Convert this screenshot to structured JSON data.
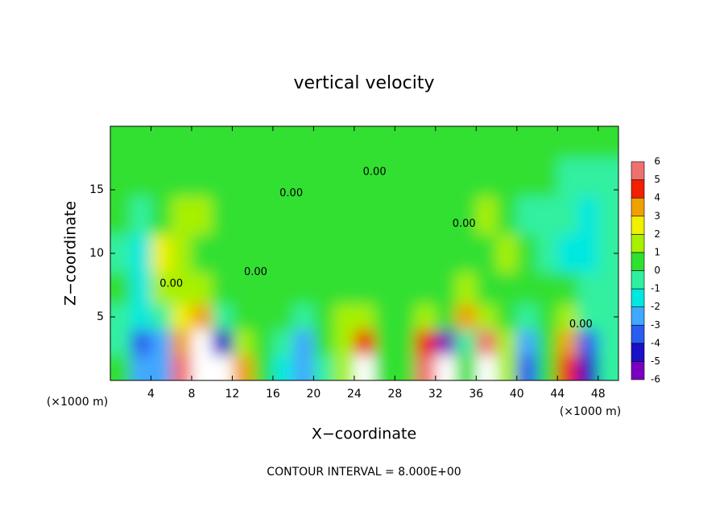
{
  "chart_data": {
    "type": "heatmap",
    "title": "vertical velocity",
    "x_label": "X−coordinate",
    "y_label": "Z−coordinate",
    "x_unit": "(×1000 m)",
    "footer": "CONTOUR INTERVAL = 8.000E+00",
    "xlim": [
      0,
      50
    ],
    "ylim": [
      0,
      20
    ],
    "xticks": [
      4,
      8,
      12,
      16,
      20,
      24,
      28,
      32,
      36,
      40,
      44,
      48
    ],
    "yticks": [
      5,
      10,
      15
    ],
    "x": [
      1,
      3,
      5,
      7,
      9,
      11,
      13,
      15,
      17,
      19,
      21,
      23,
      25,
      27,
      29,
      31,
      33,
      35,
      37,
      39,
      41,
      43,
      45,
      47,
      49
    ],
    "y": [
      1,
      3,
      5,
      7,
      10,
      13,
      16,
      19
    ],
    "z": [
      [
        0.5,
        -3,
        -3,
        5,
        7,
        -7,
        3,
        0.5,
        -2,
        -3,
        -0.5,
        1,
        6,
        0.5,
        0,
        5.5,
        -7,
        0,
        7,
        1,
        -4,
        0.5,
        4.5,
        -5,
        -0.5
      ],
      [
        -1,
        -3.5,
        -2.5,
        3,
        6,
        -5,
        1.5,
        0,
        -1,
        -2.5,
        0,
        1,
        4,
        0.5,
        0.5,
        4,
        -6,
        -1,
        5,
        1,
        -3,
        0.5,
        3.5,
        -4,
        -1
      ],
      [
        -1,
        -2,
        -1,
        2,
        3.5,
        -1,
        0.5,
        0.5,
        0,
        -0.5,
        0.5,
        1,
        1.5,
        0.5,
        0.5,
        1,
        0,
        3,
        1.5,
        0.5,
        -1,
        0.5,
        1.5,
        -1,
        -0.5
      ],
      [
        0,
        -1.5,
        1.5,
        1,
        1.5,
        0.5,
        0.3,
        0.3,
        0.5,
        0.3,
        0.5,
        0.8,
        0.5,
        0.5,
        0.3,
        0.5,
        0,
        1,
        0.5,
        0.5,
        0.3,
        0.5,
        0.5,
        -0.5,
        -1
      ],
      [
        -1,
        -1.5,
        2,
        1.2,
        0.8,
        0.5,
        0.3,
        0.3,
        0.3,
        0.3,
        0.5,
        0.8,
        0.8,
        0.5,
        0.3,
        0.3,
        0.3,
        0.5,
        0.5,
        1.5,
        0.5,
        -1,
        -1.5,
        -1.5,
        -1
      ],
      [
        0,
        -0.5,
        0.5,
        1,
        1,
        0.5,
        0.3,
        0.3,
        0.3,
        0.3,
        0.5,
        0.5,
        0.5,
        0.5,
        0.3,
        0.3,
        0.5,
        0.8,
        1,
        0.5,
        -0.5,
        -1,
        -1,
        -1.5,
        -1
      ],
      [
        0.3,
        0.3,
        0.3,
        0.5,
        0.5,
        0.5,
        0.3,
        0.3,
        0.3,
        0.3,
        0.3,
        0.5,
        0.3,
        0.3,
        0.3,
        0.3,
        0.5,
        0.5,
        0.5,
        0.3,
        0.3,
        0.3,
        -0.5,
        -1,
        -1
      ],
      [
        0.5,
        0.5,
        0.5,
        0.5,
        0.5,
        0.5,
        0.5,
        0.5,
        0.5,
        0.5,
        0.5,
        0.5,
        0.5,
        0.5,
        0.5,
        0.5,
        0.5,
        0.5,
        0.5,
        0.5,
        0.5,
        0.5,
        0.3,
        0.3,
        0.3
      ]
    ],
    "colorbar": {
      "ticks": [
        -6,
        -5,
        -4,
        -3,
        -2,
        -1,
        0,
        1,
        2,
        3,
        4,
        5,
        6
      ],
      "colors": [
        "#7a00c0",
        "#1a10c8",
        "#2a5cf0",
        "#40a8ff",
        "#00e8e0",
        "#30f0a0",
        "#30e030",
        "#a8f000",
        "#f0f000",
        "#f0a000",
        "#f02000",
        "#f07070"
      ],
      "out_of_range_color": "#ffffff"
    },
    "contour_labels": [
      {
        "text": "0.00",
        "x": 6,
        "y": 7.6
      },
      {
        "text": "0.00",
        "x": 14.3,
        "y": 8.5
      },
      {
        "text": "0.00",
        "x": 17.8,
        "y": 14.7
      },
      {
        "text": "0.00",
        "x": 26,
        "y": 16.4
      },
      {
        "text": "0.00",
        "x": 34.8,
        "y": 12.3
      },
      {
        "text": "0.00",
        "x": 46.3,
        "y": 4.4
      }
    ]
  }
}
